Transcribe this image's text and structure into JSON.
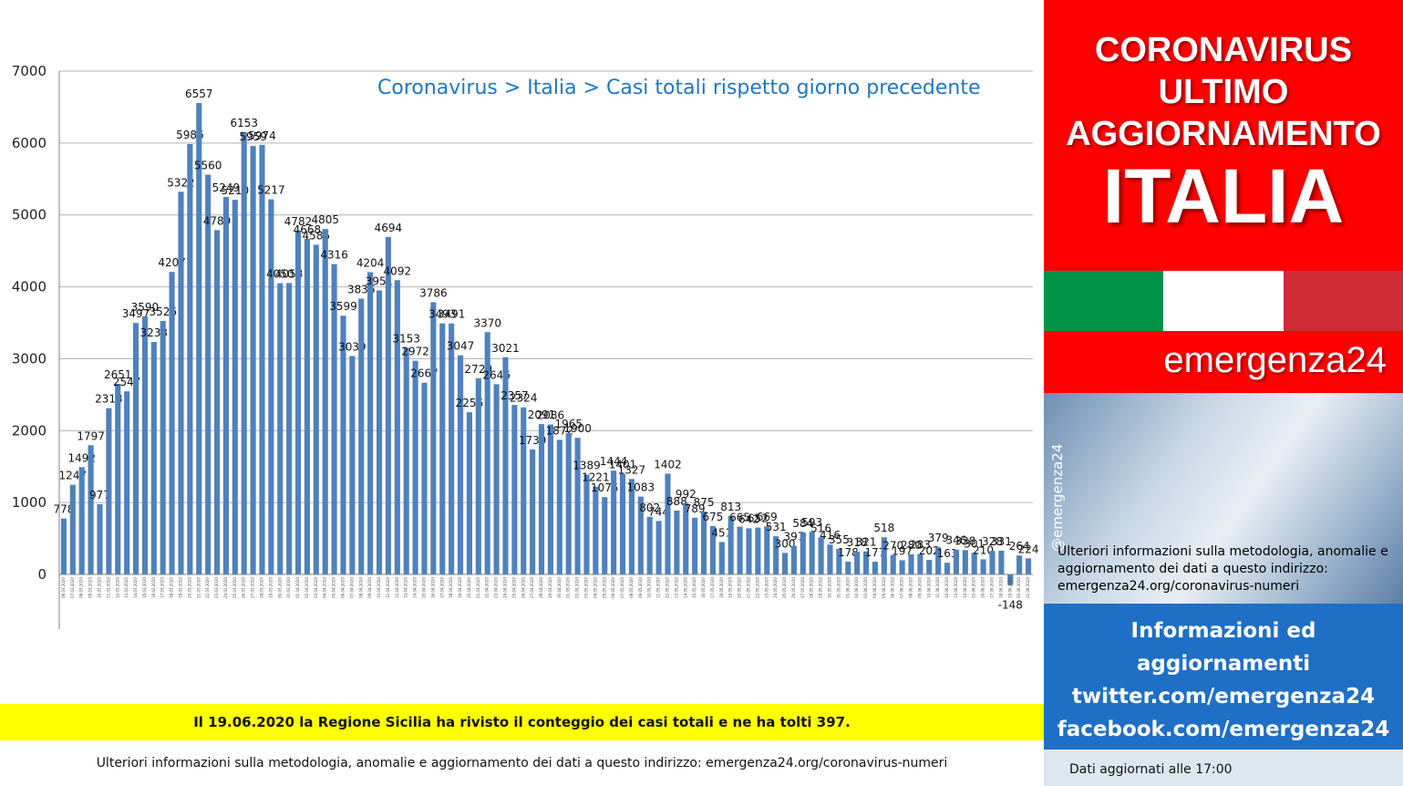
{
  "chart_data": {
    "type": "bar",
    "title": "Coronavirus > Italia > Casi totali rispetto giorno precedente",
    "ylim": [
      -1000,
      7000
    ],
    "yticks": [
      0,
      1000,
      2000,
      3000,
      4000,
      5000,
      6000,
      7000
    ],
    "grid": true,
    "legend": "none",
    "bar_color": "#4f81bd",
    "categories": [
      "06.03.2020",
      "07.03.2020",
      "08.03.2020",
      "09.03.2020",
      "10.03.2020",
      "11.03.2020",
      "12.03.2020",
      "13.03.2020",
      "14.03.2020",
      "15.03.2020",
      "16.03.2020",
      "17.03.2020",
      "18.03.2020",
      "19.03.2020",
      "20.03.2020",
      "21.03.2020",
      "22.03.2020",
      "23.03.2020",
      "24.03.2020",
      "25.03.2020",
      "26.03.2020",
      "27.03.2020",
      "28.03.2020",
      "29.03.2020",
      "30.03.2020",
      "31.03.2020",
      "01.04.2020",
      "02.04.2020",
      "03.04.2020",
      "04.04.2020",
      "05.04.2020",
      "06.04.2020",
      "07.04.2020",
      "08.04.2020",
      "09.04.2020",
      "10.04.2020",
      "11.04.2020",
      "12.04.2020",
      "13.04.2020",
      "14.04.2020",
      "15.04.2020",
      "16.04.2020",
      "17.04.2020",
      "18.04.2020",
      "19.04.2020",
      "20.04.2020",
      "21.04.2020",
      "22.04.2020",
      "23.04.2020",
      "24.04.2020",
      "25.04.2020",
      "26.04.2020",
      "27.04.2020",
      "28.04.2020",
      "29.04.2020",
      "30.04.2020",
      "01.05.2020",
      "02.05.2020",
      "03.05.2020",
      "04.05.2020",
      "05.05.2020",
      "06.05.2020",
      "07.05.2020",
      "08.05.2020",
      "09.05.2020",
      "10.05.2020",
      "11.05.2020",
      "12.05.2020",
      "13.05.2020",
      "14.05.2020",
      "15.05.2020",
      "16.05.2020",
      "17.05.2020",
      "18.05.2020",
      "19.05.2020",
      "20.05.2020",
      "21.05.2020",
      "22.05.2020",
      "23.05.2020",
      "24.05.2020",
      "25.05.2020",
      "26.05.2020",
      "27.05.2020",
      "28.05.2020",
      "29.05.2020",
      "30.05.2020",
      "31.05.2020",
      "01.06.2020",
      "02.06.2020",
      "03.06.2020",
      "04.06.2020",
      "05.06.2020",
      "06.06.2020",
      "07.06.2020",
      "08.06.2020",
      "09.06.2020",
      "10.06.2020",
      "11.06.2020",
      "12.06.2020",
      "13.06.2020",
      "14.06.2020",
      "15.06.2020",
      "16.06.2020",
      "17.06.2020",
      "18.06.2020",
      "19.06.2020",
      "20.06.2020",
      "21.06.2020"
    ],
    "values": [
      778,
      1247,
      1492,
      1797,
      977,
      2313,
      2651,
      2547,
      3497,
      3590,
      3233,
      3526,
      4207,
      5322,
      5986,
      6557,
      5560,
      4789,
      5249,
      5210,
      6153,
      5959,
      5974,
      5217,
      4050,
      4053,
      4782,
      4668,
      4585,
      4805,
      4316,
      3599,
      3039,
      3836,
      4204,
      3951,
      4694,
      4092,
      3153,
      2972,
      2667,
      3786,
      3493,
      3491,
      3047,
      2256,
      2729,
      3370,
      2646,
      3021,
      2357,
      2324,
      1739,
      2091,
      2086,
      1872,
      1965,
      1900,
      1389,
      1221,
      1075,
      1444,
      1401,
      1327,
      1083,
      802,
      744,
      1402,
      888,
      992,
      789,
      875,
      675,
      451,
      813,
      665,
      642,
      652,
      669,
      531,
      300,
      397,
      584,
      593,
      516,
      416,
      355,
      178,
      318,
      321,
      177,
      518,
      270,
      197,
      280,
      283,
      202,
      379,
      163,
      346,
      338,
      301,
      210,
      328,
      331,
      -148,
      264,
      224
    ]
  },
  "note": "Il 19.06.2020 la Regione Sicilia ha rivisto il conteggio dei casi totali e ne ha tolti 397.",
  "footer": "Ulteriori informazioni sulla metodologia, anomalie e aggiornamento dei dati a questo indirizzo: emergenza24.org/coronavirus-numeri",
  "sidebar": {
    "headline": [
      "CORONAVIRUS",
      "ULTIMO",
      "AGGIORNAMENTO"
    ],
    "country": "ITALIA",
    "flag_colors": [
      "#009246",
      "#ffffff",
      "#ce2b37"
    ],
    "brand": "emergenza24",
    "handle": "@emergenza24",
    "info_text": "Ulteriori informazioni sulla metodologia, anomalie e aggiornamento dei dati a questo indirizzo: emergenza24.org/coronavirus-numeri",
    "social": [
      "Informazioni ed",
      "aggiornamenti",
      "twitter.com/emergenza24",
      "facebook.com/emergenza24"
    ],
    "updated": "Dati aggiornati alle 17:00"
  }
}
